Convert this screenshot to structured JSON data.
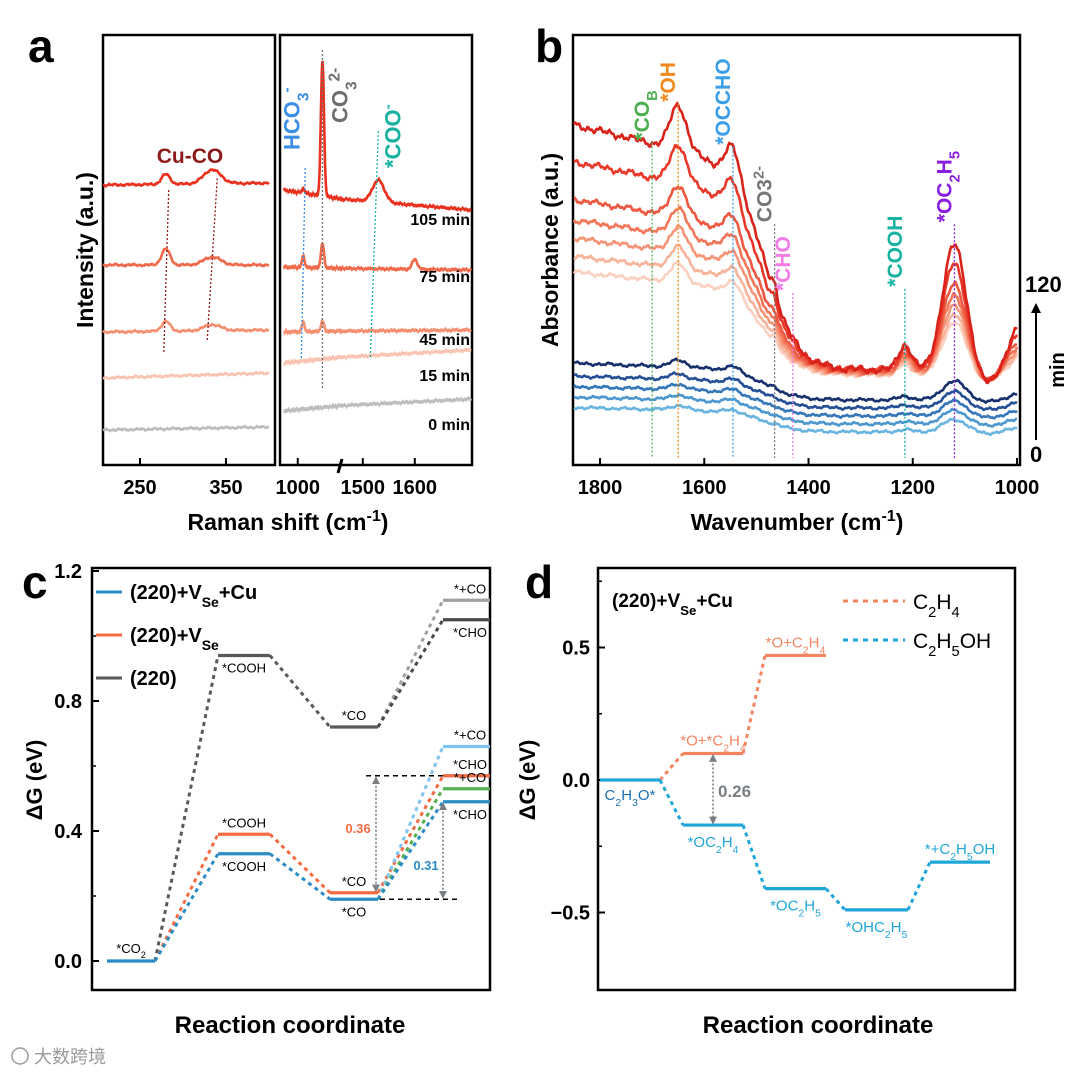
{
  "panels": {
    "a": "a",
    "b": "b",
    "c": "c",
    "d": "d"
  },
  "watermark": "大数跨境",
  "chart_data": [
    {
      "panel": "a",
      "type": "line",
      "title": "",
      "xlabel": "Raman shift (cm^{-1})",
      "ylabel": "Intensity (a.u.)",
      "xlim_left": [
        200,
        400
      ],
      "xlim_right": [
        960,
        1710
      ],
      "xticks_left": [
        "250",
        "350"
      ],
      "xticks_right": [
        "1000",
        "1500",
        "1600"
      ],
      "axis_break": true,
      "series": [
        {
          "name": "0 min",
          "color": "#bdbdbd",
          "left_offset": 5,
          "left_slope": 3,
          "cuco": [
            0,
            0
          ],
          "right_offset": 24,
          "right_slope": 12,
          "hco3": 0,
          "co3": 0,
          "coo": 0,
          "p1600": 0
        },
        {
          "name": "15 min",
          "color": "#f8c3b0",
          "left_offset": 57,
          "left_slope": 5,
          "cuco": [
            0,
            0
          ],
          "right_offset": 72,
          "right_slope": 13,
          "hco3": 0,
          "co3": 0,
          "coo": 0,
          "p1600": 0
        },
        {
          "name": "45 min",
          "color": "#f4906f",
          "left_offset": 103,
          "left_slope": 2,
          "cuco": [
            10,
            6
          ],
          "right_offset": 103,
          "right_slope": 2,
          "hco3": 10,
          "co3": 10,
          "coo": 0,
          "p1600": 0
        },
        {
          "name": "75 min",
          "color": "#ee6a4a",
          "left_offset": 170,
          "left_slope": 0,
          "cuco": [
            16,
            8
          ],
          "right_offset": 168,
          "right_slope": -3,
          "hco3": 12,
          "co3": 24,
          "coo": 0,
          "p1600": 10
        },
        {
          "name": "105 min",
          "color": "#e8321f",
          "left_offset": 250,
          "left_slope": 2,
          "cuco": [
            10,
            14
          ],
          "right_offset": 245,
          "right_slope": -20,
          "hco3": 5,
          "co3": 135,
          "coo": 22,
          "p1600": 0
        }
      ],
      "annotations": [
        {
          "label": "Cu-CO",
          "x": [
            280,
            334
          ],
          "color": "#8b1a1a"
        },
        {
          "label": "HCO_{3}^{-}",
          "x": 1015,
          "color": "#3a8ee6"
        },
        {
          "label": "CO_{3}^{2-}",
          "x": 1067,
          "color": "#6e6e6e"
        },
        {
          "label": "*COO^{-}",
          "x": 1530,
          "color": "#17b3a0"
        }
      ]
    },
    {
      "panel": "b",
      "type": "line",
      "title": "",
      "xlabel": "Wavenumber (cm^{-1})",
      "ylabel": "Absorbance (a.u.)",
      "xlim": [
        1852,
        1000
      ],
      "xticks": [
        "1800",
        "1600",
        "1400",
        "1200",
        "1000"
      ],
      "time_axis": {
        "top": "120",
        "bottom": "0",
        "unit": "min"
      },
      "series": [
        {
          "color": "#6ab4e0",
          "offset": 38,
          "scale": 0.1
        },
        {
          "color": "#4c97cf",
          "offset": 46,
          "scale": 0.11
        },
        {
          "color": "#3577b8",
          "offset": 54,
          "scale": 0.12
        },
        {
          "color": "#244f95",
          "offset": 62,
          "scale": 0.13
        },
        {
          "color": "#16306c",
          "offset": 70,
          "scale": 0.15
        },
        {
          "color": "#fbd0c0",
          "offset": 95,
          "scale": 0.42
        },
        {
          "color": "#f8b39b",
          "offset": 96,
          "scale": 0.48
        },
        {
          "color": "#f59578",
          "offset": 97,
          "scale": 0.55
        },
        {
          "color": "#f27658",
          "offset": 98,
          "scale": 0.62
        },
        {
          "color": "#ee5740",
          "offset": 99,
          "scale": 0.7
        },
        {
          "color": "#e7382a",
          "offset": 100,
          "scale": 0.85
        },
        {
          "color": "#d9231a",
          "offset": 100,
          "scale": 1.0
        }
      ],
      "annotations": [
        {
          "label": "*CO_{B}",
          "x": 1700,
          "color": "#4caf50",
          "top": 0.75
        },
        {
          "label": "*OH",
          "x": 1650,
          "color": "#f08a1c",
          "top": 0.84
        },
        {
          "label": "*OCCHO",
          "x": 1545,
          "color": "#3a9ee8",
          "top": 0.74
        },
        {
          "label": "CO3^{2-}",
          "x": 1465,
          "color": "#777777",
          "top": 0.56
        },
        {
          "label": "*CHO",
          "x": 1430,
          "color": "#f07ce8",
          "top": 0.4
        },
        {
          "label": "*COOH",
          "x": 1215,
          "color": "#17b3a0",
          "top": 0.41
        },
        {
          "label": "*OC_{2}H_{5}",
          "x": 1120,
          "color": "#8a1ee0",
          "top": 0.56
        }
      ]
    },
    {
      "panel": "c",
      "type": "energy-diagram",
      "xlabel": "Reaction coordinate",
      "ylabel": "ΔG (eV)",
      "ylim": [
        -0.1,
        1.2
      ],
      "yticks": [
        "0.0",
        "0.4",
        "0.8",
        "1.2"
      ],
      "initial": {
        "label": "*CO_{2}",
        "value": 0,
        "color": "#2b8cc4"
      },
      "series": [
        {
          "name": "(220)+V_{Se}+Cu",
          "color": "#2b8cc4",
          "path": [
            {
              "label": "*COOH",
              "value": 0.33,
              "pos": "below"
            },
            {
              "label": "*CO",
              "value": 0.19,
              "pos": "below"
            }
          ],
          "final": [
            {
              "label": "*+CO",
              "value": 0.66,
              "color": "#7ec4ec",
              "pos": "above"
            },
            {
              "label": "*+CO",
              "value": 0.53,
              "color": "#55b04f",
              "pos": "above"
            },
            {
              "label": "*CHO",
              "value": 0.49,
              "color": "#2b8cc4",
              "pos": "below"
            }
          ]
        },
        {
          "name": "(220)+V_{Se}",
          "color": "#f26b43",
          "path": [
            {
              "label": "*COOH",
              "value": 0.39,
              "pos": "above"
            },
            {
              "label": "*CO",
              "value": 0.21,
              "pos": "above"
            }
          ],
          "final": [
            {
              "label": "*CHO",
              "value": 0.57,
              "color": "#f26b43",
              "pos": "above"
            }
          ]
        },
        {
          "name": "(220)",
          "color": "#58595b",
          "path": [
            {
              "label": "*COOH",
              "value": 0.94,
              "pos": "below"
            },
            {
              "label": "*CO",
              "value": 0.72,
              "pos": "above"
            }
          ],
          "final": [
            {
              "label": "*+CO",
              "value": 1.11,
              "color": "#a0a0a0",
              "pos": "above"
            },
            {
              "label": "*CHO",
              "value": 1.05,
              "color": "#4a4a4a",
              "pos": "below"
            }
          ]
        }
      ],
      "annotations": [
        {
          "label": "0.36",
          "from": 0.21,
          "to": 0.57,
          "color": "#f26b43"
        },
        {
          "label": "0.31",
          "from": 0.19,
          "to": 0.49,
          "color": "#2b8cc4"
        }
      ]
    },
    {
      "panel": "d",
      "type": "energy-diagram",
      "xlabel": "Reaction coordinate",
      "ylabel": "ΔG (eV)",
      "ylim": [
        -0.75,
        0.8
      ],
      "yticks": [
        "0.5",
        "0.0",
        "−0.5"
      ],
      "ytick_values": [
        0.5,
        0,
        -0.5
      ],
      "title": "(220)+V_{Se}+Cu",
      "initial": {
        "label": "C_{2}H_{3}O*",
        "value": 0,
        "color": "#1d6fae"
      },
      "series": [
        {
          "name": "C_{2}H_{4}",
          "color": "#f4845f",
          "path": [
            {
              "label": "*O+*C_{2}H_{4}",
              "value": 0.1,
              "pos": "above"
            },
            {
              "label": "*O+C_{2}H_{4}",
              "value": 0.47,
              "pos": "above"
            }
          ]
        },
        {
          "name": "C_{2}H_{5}OH",
          "color": "#1ea6d8",
          "path": [
            {
              "label": "*OC_{2}H_{4}",
              "value": -0.17,
              "pos": "below"
            },
            {
              "label": "*OC_{2}H_{5}",
              "value": -0.41,
              "pos": "below"
            },
            {
              "label": "*OHC_{2}H_{5}",
              "value": -0.49,
              "pos": "below"
            },
            {
              "label": "*+C_{2}H_{5}OH",
              "value": -0.31,
              "pos": "above"
            }
          ]
        }
      ],
      "annotations": [
        {
          "label": "0.26",
          "from": -0.17,
          "to": 0.1,
          "color": "#7a7f84"
        }
      ]
    }
  ]
}
